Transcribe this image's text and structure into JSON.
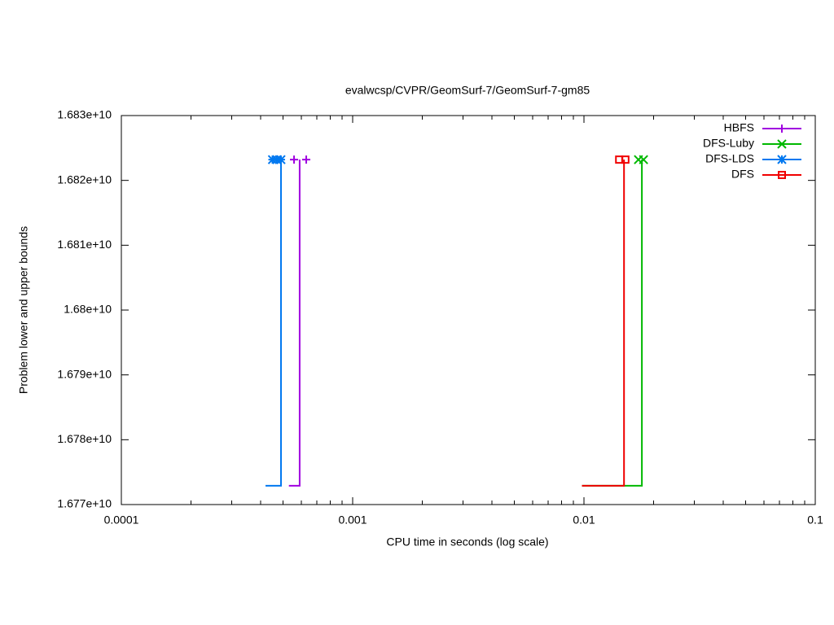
{
  "chart_data": {
    "type": "step",
    "title": "evalwcsp/CVPR/GeomSurf-7/GeomSurf-7-gm85",
    "x_label": "CPU time in seconds (log scale)",
    "y_label": "Problem lower and upper bounds",
    "x_log_scale": true,
    "xlim": [
      0.0001,
      0.1
    ],
    "xticks": [
      0.0001,
      0.001,
      0.01,
      0.1
    ],
    "ylim": [
      16770000000,
      16830000000
    ],
    "yticks": [
      {
        "value": 16770000000,
        "label": "1.677e+10"
      },
      {
        "value": 16780000000,
        "label": "1.678e+10"
      },
      {
        "value": 16790000000,
        "label": "1.679e+10"
      },
      {
        "value": 16800000000,
        "label": "1.68e+10"
      },
      {
        "value": 16810000000,
        "label": "1.681e+10"
      },
      {
        "value": 16820000000,
        "label": "1.682e+10"
      },
      {
        "value": 16830000000,
        "label": "1.683e+10"
      }
    ],
    "legend_position": "top-right",
    "series": [
      {
        "name": "HBFS",
        "color": "#a000e0",
        "marker": "plus",
        "x": [
          0.00053,
          0.00059
        ],
        "values": [
          16772900000,
          16823200000
        ],
        "marker_x": [
          0.000558,
          0.00063
        ],
        "marker_values": [
          16823200000,
          16823200000
        ]
      },
      {
        "name": "DFS-Luby",
        "color": "#00b800",
        "marker": "cross",
        "x": [
          0.0098,
          0.0178
        ],
        "values": [
          16772900000,
          16823200000
        ],
        "marker_x": [
          0.0172,
          0.0181
        ],
        "marker_values": [
          16823200000,
          16823200000
        ]
      },
      {
        "name": "DFS-LDS",
        "color": "#0078f0",
        "marker": "asterisk",
        "x": [
          0.00042,
          0.00049
        ],
        "values": [
          16772900000,
          16823200000
        ],
        "marker_x": [
          0.00045,
          0.00047,
          0.00049
        ],
        "marker_values": [
          16823200000,
          16823200000,
          16823200000
        ]
      },
      {
        "name": "DFS",
        "color": "#f00000",
        "marker": "square",
        "x": [
          0.0098,
          0.0149
        ],
        "values": [
          16772900000,
          16823200000
        ],
        "marker_x": [
          0.0142,
          0.0151
        ],
        "marker_values": [
          16823200000,
          16823200000
        ]
      }
    ]
  }
}
